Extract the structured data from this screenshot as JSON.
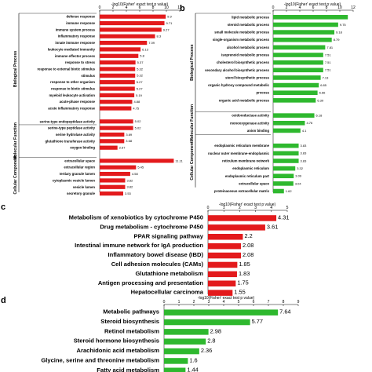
{
  "chart_data": [
    {
      "id": "a",
      "panel_label": "",
      "type": "bar",
      "orientation": "horizontal",
      "title": "",
      "xlabel": "-log10(Fisher' exact test p value)",
      "xlim": [
        0,
        12
      ],
      "xticks": [
        0,
        2,
        4,
        6,
        8,
        10,
        12
      ],
      "color": "#e31a1c",
      "groups": [
        {
          "name": "Biological Process",
          "start": 0,
          "end": 16
        },
        {
          "name": "Molecular Function",
          "start": 17,
          "end": 21
        },
        {
          "name": "Cellular Component",
          "start": 22,
          "end": 27
        }
      ],
      "categories": [
        "defense response",
        "immune response",
        "immune system process",
        "inflammatory response",
        "innate immune response",
        "leukocyte mediated immunity",
        "immune effector process",
        "response to stress",
        "response to external biotic stimulus",
        "stimulus",
        "response to other organism",
        "response to biotic stimulus",
        "myeloid leukocyte activation",
        "acute-phase response",
        "acute inflammatory response",
        "",
        "serine-type endopeptidase activity",
        "serine-type peptidase activity",
        "serine hydrolase activity",
        "glutathione transferase activity",
        "oxygen binding",
        "",
        "extracellular space",
        "extracellular region",
        "tertiary granule lumen",
        "cytoplasmic vesicle lumen",
        "vesicle lumen",
        "secretory granule"
      ],
      "values": [
        9.9,
        9.71,
        9.27,
        8.3,
        7.09,
        6.13,
        5.8,
        5.37,
        5.32,
        5.32,
        5.27,
        5.27,
        5.19,
        4.88,
        4.75,
        null,
        5.02,
        5.02,
        3.69,
        3.68,
        2.67,
        null,
        11.11,
        5.45,
        4.58,
        3.82,
        3.82,
        3.53
      ],
      "value_labels": [
        "9.9",
        "9.71",
        "9.27",
        "8.3",
        "7.09",
        "6.13",
        "5.8",
        "5.37",
        "5.32",
        "5.32",
        "5.27",
        "5.27",
        "5.19",
        "4.88",
        "4.75",
        "",
        "5.02",
        "5.02",
        "3.69",
        "3.68",
        "2.67",
        "",
        "11.11",
        "5.45",
        "4.58",
        "3.82",
        "3.82",
        "3.53"
      ]
    },
    {
      "id": "b",
      "panel_label": "b",
      "type": "bar",
      "orientation": "horizontal",
      "title": "",
      "xlabel": "-log10(Fisher' exact test p value)",
      "xlim": [
        0,
        12
      ],
      "xticks": [
        0,
        2,
        4,
        6,
        8,
        10,
        12
      ],
      "color": "#2eb82e",
      "groups": [
        {
          "name": "Biological Process",
          "start": 0,
          "end": 12
        },
        {
          "name": "Molecular Function",
          "start": 13,
          "end": 15
        },
        {
          "name": "Cellular Component",
          "start": 16,
          "end": 22
        }
      ],
      "categories": [
        "lipid metabolic process",
        "steroid metabolic process",
        "small molecule metabolic process",
        "single-organism metabolic process",
        "alcohol metabolic process",
        "isoprenoid metabolic process",
        "cholesterol biosynthetic process",
        "secondary alcohol biosynthetic process",
        "sterol biosynthetic process",
        "organic hydroxy compound metabolic",
        "process",
        "organic acid metabolic process",
        "",
        "oxidoreductase activity",
        "monooxygenase activity",
        "anion binding",
        "",
        "endoplasmic reticulum membrane",
        "nuclear outer membrane-endoplasmic",
        "reticulum membrane network",
        "endoplasmic reticulum",
        "endoplasmic reticulum part",
        "extracellular space",
        "proteinaceous extracellular matrix"
      ],
      "values": [
        11.2,
        9.75,
        9.18,
        8.79,
        7.81,
        7.51,
        7.51,
        7.51,
        7.13,
        6.85,
        6.66,
        6.39,
        null,
        6.18,
        4.76,
        4.1,
        null,
        3.83,
        3.83,
        3.83,
        3.32,
        3.09,
        3.04,
        1.62
      ],
      "value_labels": [
        "",
        "9.75",
        "9.18",
        "8.79",
        "7.81",
        "7.51",
        "7.51",
        "7.51",
        "7.13",
        "6.85",
        "6.66",
        "6.39",
        "",
        "6.18",
        "4.76",
        "4.1",
        "",
        "3.83",
        "3.83",
        "3.83",
        "3.32",
        "3.09",
        "3.04",
        "1.62"
      ]
    },
    {
      "id": "c",
      "panel_label": "c",
      "type": "bar",
      "orientation": "horizontal",
      "title": "",
      "xlabel": "-log10(Fisher' exact test p value)",
      "xlim": [
        0,
        5
      ],
      "xticks": [
        0,
        1,
        2,
        3,
        4,
        5
      ],
      "color": "#e31a1c",
      "categories": [
        "Metabolism of xenobiotics by cytochrome P450",
        "Drug metabolism - cytochrome P450",
        "PPAR signaling pathway",
        "Intestinal immune network for IgA production",
        "Inflammatory bowel disease (IBD)",
        "Cell adhesion molecules (CAMs)",
        "Glutathione metabolism",
        "Antigen processing and presentation",
        "Hepatocellular carcinoma"
      ],
      "values": [
        4.31,
        3.61,
        2.2,
        2.08,
        2.08,
        1.85,
        1.83,
        1.75,
        1.55
      ],
      "value_labels": [
        "4.31",
        "3.61",
        "2.2",
        "2.08",
        "2.08",
        "1.85",
        "1.83",
        "1.75",
        "1.55"
      ]
    },
    {
      "id": "d",
      "panel_label": "d",
      "type": "bar",
      "orientation": "horizontal",
      "title": "",
      "xlabel": "-log10(Fisher' exact test p value)",
      "xlim": [
        0,
        9
      ],
      "xticks": [
        0,
        1,
        2,
        3,
        4,
        5,
        6,
        7,
        8,
        9
      ],
      "color": "#2eb82e",
      "categories": [
        "Metabolic pathways",
        "Steroid biosynthesis",
        "Retinol metabolism",
        "Steroid hormone biosynthesis",
        "Arachidonic acid metabolism",
        "Glycine, serine and threonine metabolism",
        "Fatty acid metabolism"
      ],
      "values": [
        7.64,
        5.77,
        2.98,
        2.8,
        2.36,
        1.6,
        1.44
      ],
      "value_labels": [
        "7.64",
        "5.77",
        "2.98",
        "2.8",
        "2.36",
        "1.6",
        "1.44"
      ]
    }
  ]
}
